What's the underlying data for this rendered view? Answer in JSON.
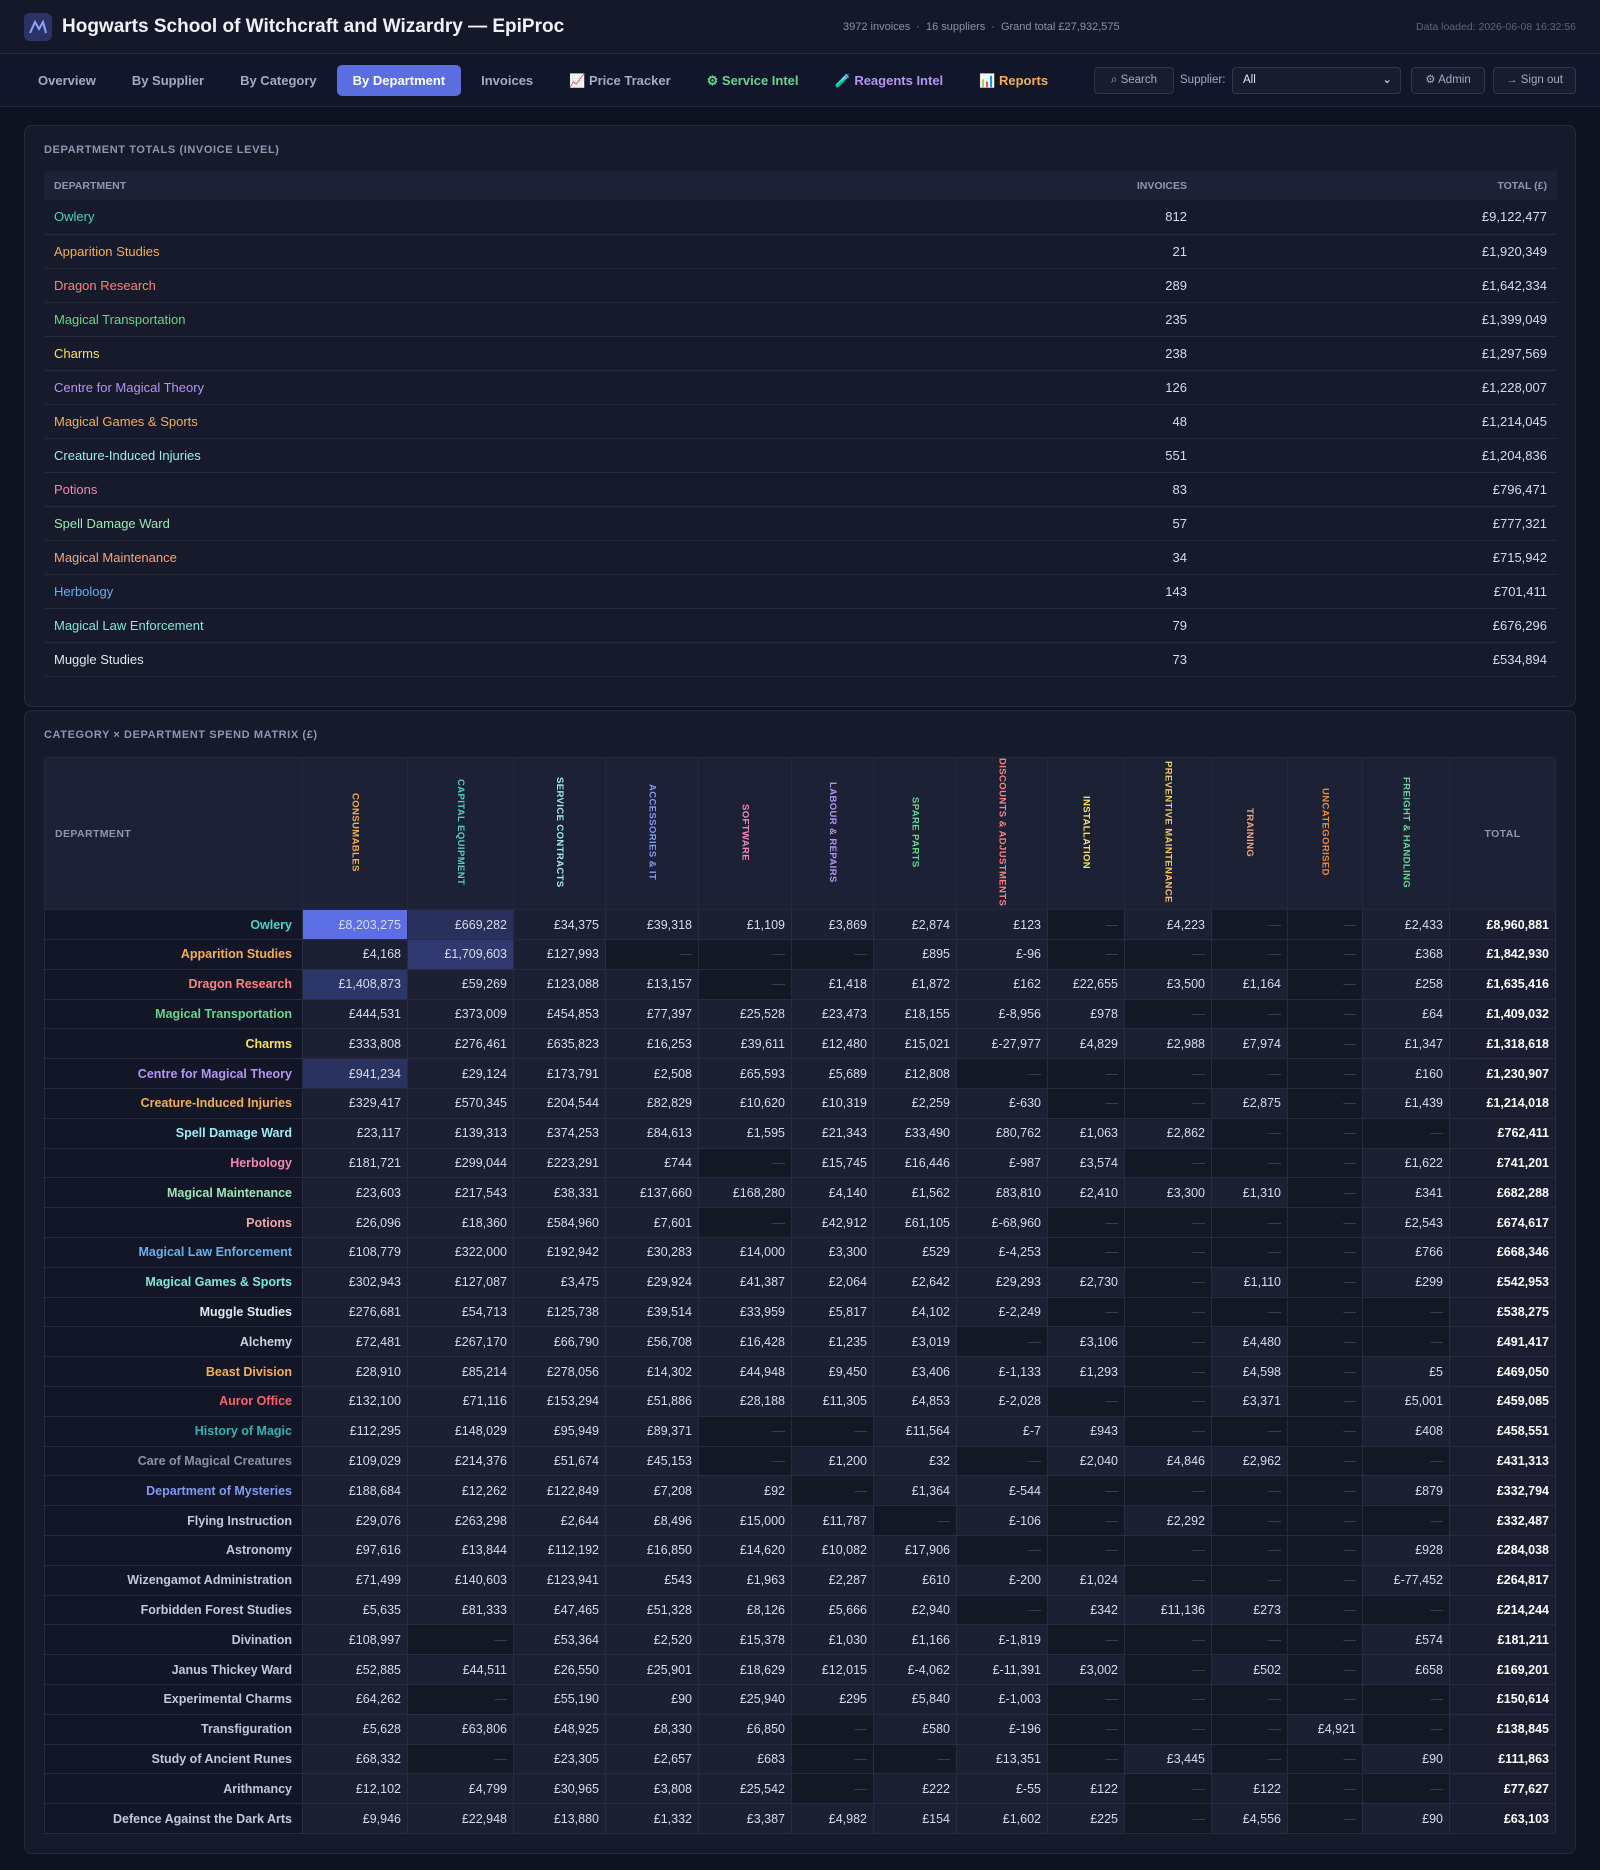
{
  "header": {
    "title": "Hogwarts School of Witchcraft and Wizardry — EpiProc",
    "stats": [
      "3972 invoices",
      "16 suppliers",
      "Grand total £27,932,575"
    ],
    "data_loaded": "Data loaded: 2026-06-08 16:32:56"
  },
  "nav": {
    "tabs": [
      "Overview",
      "By Supplier",
      "By Category",
      "By Department",
      "Invoices",
      "📈 Price Tracker",
      "⚙ Service Intel",
      "🧪 Reagents Intel",
      "📊 Reports"
    ],
    "search": "Search",
    "supplier_label": "Supplier:",
    "supplier_value": "All",
    "admin": "⚙ Admin",
    "sign_out": "→ Sign out"
  },
  "department_totals": {
    "title": "DEPARTMENT TOTALS (INVOICE LEVEL)",
    "columns": [
      "DEPARTMENT",
      "INVOICES",
      "TOTAL (£)"
    ],
    "rows": [
      [
        "Owlery",
        "812",
        "£9,122,477"
      ],
      [
        "Apparition Studies",
        "21",
        "£1,920,349"
      ],
      [
        "Dragon Research",
        "289",
        "£1,642,334"
      ],
      [
        "Magical Transportation",
        "235",
        "£1,399,049"
      ],
      [
        "Charms",
        "238",
        "£1,297,569"
      ],
      [
        "Centre for Magical Theory",
        "126",
        "£1,228,007"
      ],
      [
        "Magical Games & Sports",
        "48",
        "£1,214,045"
      ],
      [
        "Creature-Induced Injuries",
        "551",
        "£1,204,836"
      ],
      [
        "Potions",
        "83",
        "£796,471"
      ],
      [
        "Spell Damage Ward",
        "57",
        "£777,321"
      ],
      [
        "Magical Maintenance",
        "34",
        "£715,942"
      ],
      [
        "Herbology",
        "143",
        "£701,411"
      ],
      [
        "Magical Law Enforcement",
        "79",
        "£676,296"
      ],
      [
        "Muggle Studies",
        "73",
        "£534,894"
      ]
    ]
  },
  "spend_matrix": {
    "title": "CATEGORY × DEPARTMENT SPEND MATRIX (£)",
    "columns": [
      "DEPARTMENT",
      "CONSUMABLES",
      "CAPITAL EQUIPMENT",
      "SERVICE CONTRACTS",
      "ACCESSORIES & IT",
      "SOFTWARE",
      "LABOUR & REPAIRS",
      "SPARE PARTS",
      "DISCOUNTS & ADJUSTMENTS",
      "INSTALLATION",
      "PREVENTIVE MAINTENANCE",
      "TRAINING",
      "UNCATEGORISED",
      "FREIGHT & HANDLING",
      "TOTAL"
    ],
    "rows": [
      [
        "Owlery",
        "£8,203,275",
        "£669,282",
        "£34,375",
        "£39,318",
        "£1,109",
        "£3,869",
        "£2,874",
        "£123",
        "—",
        "£4,223",
        "—",
        "—",
        "£2,433",
        "£8,960,881"
      ],
      [
        "Apparition Studies",
        "£4,168",
        "£1,709,603",
        "£127,993",
        "—",
        "—",
        "—",
        "£895",
        "£-96",
        "—",
        "—",
        "—",
        "—",
        "£368",
        "£1,842,930"
      ],
      [
        "Dragon Research",
        "£1,408,873",
        "£59,269",
        "£123,088",
        "£13,157",
        "—",
        "£1,418",
        "£1,872",
        "£162",
        "£22,655",
        "£3,500",
        "£1,164",
        "—",
        "£258",
        "£1,635,416"
      ],
      [
        "Magical Transportation",
        "£444,531",
        "£373,009",
        "£454,853",
        "£77,397",
        "£25,528",
        "£23,473",
        "£18,155",
        "£-8,956",
        "£978",
        "—",
        "—",
        "—",
        "£64",
        "£1,409,032"
      ],
      [
        "Charms",
        "£333,808",
        "£276,461",
        "£635,823",
        "£16,253",
        "£39,611",
        "£12,480",
        "£15,021",
        "£-27,977",
        "£4,829",
        "£2,988",
        "£7,974",
        "—",
        "£1,347",
        "£1,318,618"
      ],
      [
        "Centre for Magical Theory",
        "£941,234",
        "£29,124",
        "£173,791",
        "£2,508",
        "£65,593",
        "£5,689",
        "£12,808",
        "—",
        "—",
        "—",
        "—",
        "—",
        "£160",
        "£1,230,907"
      ],
      [
        "Creature-Induced Injuries",
        "£329,417",
        "£570,345",
        "£204,544",
        "£82,829",
        "£10,620",
        "£10,319",
        "£2,259",
        "£-630",
        "—",
        "—",
        "£2,875",
        "—",
        "£1,439",
        "£1,214,018"
      ],
      [
        "Spell Damage Ward",
        "£23,117",
        "£139,313",
        "£374,253",
        "£84,613",
        "£1,595",
        "£21,343",
        "£33,490",
        "£80,762",
        "£1,063",
        "£2,862",
        "—",
        "—",
        "—",
        "£762,411"
      ],
      [
        "Herbology",
        "£181,721",
        "£299,044",
        "£223,291",
        "£744",
        "—",
        "£15,745",
        "£16,446",
        "£-987",
        "£3,574",
        "—",
        "—",
        "—",
        "£1,622",
        "£741,201"
      ],
      [
        "Magical Maintenance",
        "£23,603",
        "£217,543",
        "£38,331",
        "£137,660",
        "£168,280",
        "£4,140",
        "£1,562",
        "£83,810",
        "£2,410",
        "£3,300",
        "£1,310",
        "—",
        "£341",
        "£682,288"
      ],
      [
        "Potions",
        "£26,096",
        "£18,360",
        "£584,960",
        "£7,601",
        "—",
        "£42,912",
        "£61,105",
        "£-68,960",
        "—",
        "—",
        "—",
        "—",
        "£2,543",
        "£674,617"
      ],
      [
        "Magical Law Enforcement",
        "£108,779",
        "£322,000",
        "£192,942",
        "£30,283",
        "£14,000",
        "£3,300",
        "£529",
        "£-4,253",
        "—",
        "—",
        "—",
        "—",
        "£766",
        "£668,346"
      ],
      [
        "Magical Games & Sports",
        "£302,943",
        "£127,087",
        "£3,475",
        "£29,924",
        "£41,387",
        "£2,064",
        "£2,642",
        "£29,293",
        "£2,730",
        "—",
        "£1,110",
        "—",
        "£299",
        "£542,953"
      ],
      [
        "Muggle Studies",
        "£276,681",
        "£54,713",
        "£125,738",
        "£39,514",
        "£33,959",
        "£5,817",
        "£4,102",
        "£-2,249",
        "—",
        "—",
        "—",
        "—",
        "—",
        "£538,275"
      ],
      [
        "Alchemy",
        "£72,481",
        "£267,170",
        "£66,790",
        "£56,708",
        "£16,428",
        "£1,235",
        "£3,019",
        "—",
        "£3,106",
        "—",
        "£4,480",
        "—",
        "—",
        "£491,417"
      ],
      [
        "Beast Division",
        "£28,910",
        "£85,214",
        "£278,056",
        "£14,302",
        "£44,948",
        "£9,450",
        "£3,406",
        "£-1,133",
        "£1,293",
        "—",
        "£4,598",
        "—",
        "£5",
        "£469,050"
      ],
      [
        "Auror Office",
        "£132,100",
        "£71,116",
        "£153,294",
        "£51,886",
        "£28,188",
        "£11,305",
        "£4,853",
        "£-2,028",
        "—",
        "—",
        "£3,371",
        "—",
        "£5,001",
        "£459,085"
      ],
      [
        "History of Magic",
        "£112,295",
        "£148,029",
        "£95,949",
        "£89,371",
        "—",
        "—",
        "£11,564",
        "£-7",
        "£943",
        "—",
        "—",
        "—",
        "£408",
        "£458,551"
      ],
      [
        "Care of Magical Creatures",
        "£109,029",
        "£214,376",
        "£51,674",
        "£45,153",
        "—",
        "£1,200",
        "£32",
        "—",
        "£2,040",
        "£4,846",
        "£2,962",
        "—",
        "—",
        "£431,313"
      ],
      [
        "Department of Mysteries",
        "£188,684",
        "£12,262",
        "£122,849",
        "£7,208",
        "£92",
        "—",
        "£1,364",
        "£-544",
        "—",
        "—",
        "—",
        "—",
        "£879",
        "£332,794"
      ],
      [
        "Flying Instruction",
        "£29,076",
        "£263,298",
        "£2,644",
        "£8,496",
        "£15,000",
        "£11,787",
        "—",
        "£-106",
        "—",
        "£2,292",
        "—",
        "—",
        "—",
        "£332,487"
      ],
      [
        "Astronomy",
        "£97,616",
        "£13,844",
        "£112,192",
        "£16,850",
        "£14,620",
        "£10,082",
        "£17,906",
        "—",
        "—",
        "—",
        "—",
        "—",
        "£928",
        "£284,038"
      ],
      [
        "Wizengamot Administration",
        "£71,499",
        "£140,603",
        "£123,941",
        "£543",
        "£1,963",
        "£2,287",
        "£610",
        "£-200",
        "£1,024",
        "—",
        "—",
        "—",
        "£-77,452",
        "£264,817"
      ],
      [
        "Forbidden Forest Studies",
        "£5,635",
        "£81,333",
        "£47,465",
        "£51,328",
        "£8,126",
        "£5,666",
        "£2,940",
        "—",
        "£342",
        "£11,136",
        "£273",
        "—",
        "—",
        "£214,244"
      ],
      [
        "Divination",
        "£108,997",
        "—",
        "£53,364",
        "£2,520",
        "£15,378",
        "£1,030",
        "£1,166",
        "£-1,819",
        "—",
        "—",
        "—",
        "—",
        "£574",
        "£181,211"
      ],
      [
        "Janus Thickey Ward",
        "£52,885",
        "£44,511",
        "£26,550",
        "£25,901",
        "£18,629",
        "£12,015",
        "£-4,062",
        "£-11,391",
        "£3,002",
        "—",
        "£502",
        "—",
        "£658",
        "£169,201"
      ],
      [
        "Experimental Charms",
        "£64,262",
        "—",
        "£55,190",
        "£90",
        "£25,940",
        "£295",
        "£5,840",
        "£-1,003",
        "—",
        "—",
        "—",
        "—",
        "—",
        "£150,614"
      ],
      [
        "Transfiguration",
        "£5,628",
        "£63,806",
        "£48,925",
        "£8,330",
        "£6,850",
        "—",
        "£580",
        "£-196",
        "—",
        "—",
        "—",
        "£4,921",
        "—",
        "£138,845"
      ],
      [
        "Study of Ancient Runes",
        "£68,332",
        "—",
        "£23,305",
        "£2,657",
        "£683",
        "—",
        "—",
        "£13,351",
        "—",
        "£3,445",
        "—",
        "—",
        "£90",
        "£111,863"
      ],
      [
        "Arithmancy",
        "£12,102",
        "£4,799",
        "£30,965",
        "£3,808",
        "£25,542",
        "—",
        "£222",
        "£-55",
        "£122",
        "—",
        "£122",
        "—",
        "—",
        "£77,627"
      ],
      [
        "Defence Against the Dark Arts",
        "£9,946",
        "£22,948",
        "£13,880",
        "£1,332",
        "£3,387",
        "£4,982",
        "£154",
        "£1,602",
        "£225",
        "—",
        "£4,556",
        "—",
        "£90",
        "£63,103"
      ]
    ]
  }
}
